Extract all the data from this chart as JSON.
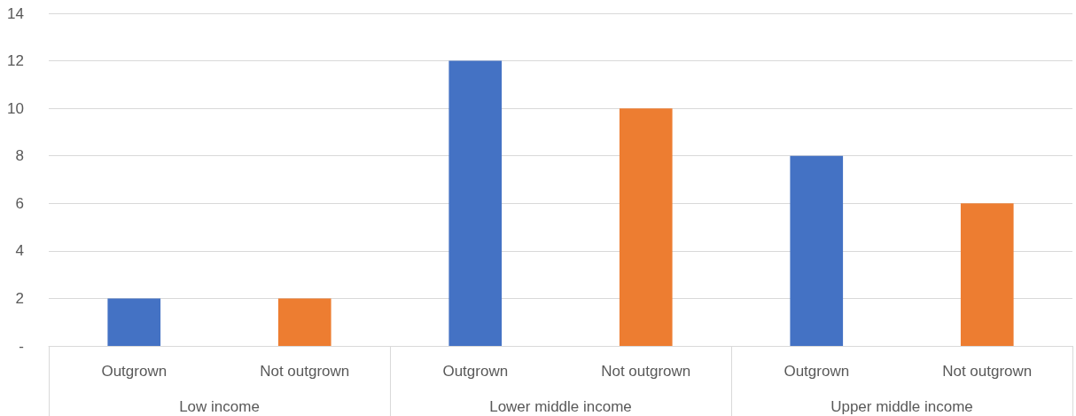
{
  "chart_data": {
    "type": "bar",
    "categories": [
      "Outgrown",
      "Not outgrown",
      "Outgrown",
      "Not outgrown",
      "Outgrown",
      "Not outgrown"
    ],
    "values": [
      2,
      2,
      12,
      10,
      8,
      6
    ],
    "colors": [
      "#4472c4",
      "#ed7d31",
      "#4472c4",
      "#ed7d31",
      "#4472c4",
      "#ed7d31"
    ],
    "annotations": [
      "Low income",
      "Lower middle income",
      "Upper middle income"
    ],
    "ylim": [
      0,
      14
    ],
    "yticks": [
      {
        "value": 0,
        "label": "-"
      },
      2,
      4,
      6,
      8,
      10,
      12,
      14
    ],
    "grid": "y"
  }
}
